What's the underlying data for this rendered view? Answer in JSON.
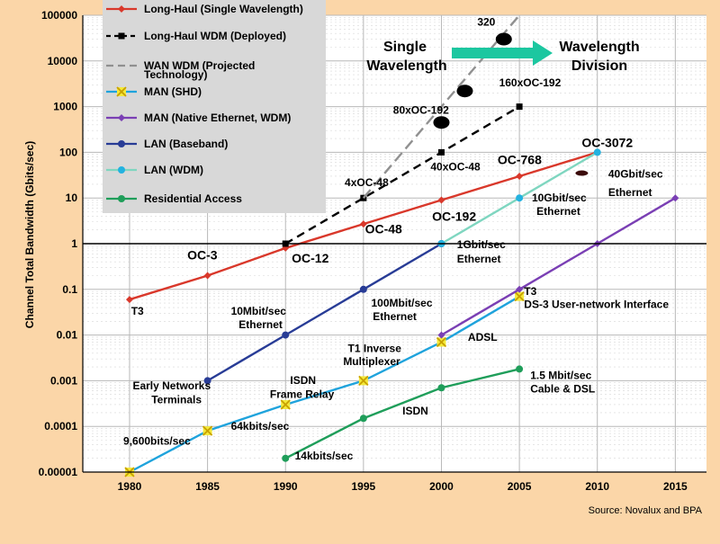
{
  "chart_data": {
    "type": "line",
    "y_scale": "log",
    "ylim": [
      1e-05,
      100000
    ],
    "xlim": [
      1977,
      2017
    ],
    "grid": true,
    "ylabel": "Channel Total Bandwidth (Gbits/sec)",
    "x_ticks": [
      1980,
      1985,
      1990,
      1995,
      2000,
      2005,
      2010,
      2015
    ],
    "y_ticks": [
      {
        "value": 1e-05,
        "label": "0.00001"
      },
      {
        "value": 0.0001,
        "label": "0.0001"
      },
      {
        "value": 0.001,
        "label": "0.001"
      },
      {
        "value": 0.01,
        "label": "0.01"
      },
      {
        "value": 0.1,
        "label": "0.1"
      },
      {
        "value": 1,
        "label": "1"
      },
      {
        "value": 10,
        "label": "10"
      },
      {
        "value": 100,
        "label": "100"
      },
      {
        "value": 1000,
        "label": "1000"
      },
      {
        "value": 10000,
        "label": "10000"
      },
      {
        "value": 100000,
        "label": "100000"
      }
    ],
    "series": [
      {
        "name": "Long-Haul (Single Wavelength)",
        "color": "#d9382b",
        "dash": "",
        "marker": "diamond",
        "points": [
          [
            1980,
            0.06
          ],
          [
            1985,
            0.2
          ],
          [
            1990,
            0.8
          ],
          [
            1995,
            2.7
          ],
          [
            2000,
            9
          ],
          [
            2005,
            30
          ],
          [
            2010,
            100
          ]
        ]
      },
      {
        "name": "Long-Haul WDM (Deployed)",
        "color": "#000000",
        "dash": "9,6",
        "marker": "square",
        "points": [
          [
            1990,
            1
          ],
          [
            1995,
            10
          ],
          [
            2000,
            100
          ],
          [
            2005,
            1000
          ]
        ]
      },
      {
        "name": "WAN WDM (Projected Technology)",
        "color": "#909090",
        "dash": "12,6",
        "marker": "none",
        "points": [
          [
            1995,
            10
          ],
          [
            1997.5,
            100
          ],
          [
            2000,
            1000
          ],
          [
            2002.5,
            10000
          ],
          [
            2005,
            100000
          ]
        ]
      },
      {
        "name": "MAN (SHD)",
        "color": "#1fa3dc",
        "dash": "",
        "marker": "xbox",
        "points": [
          [
            1980,
            1e-05
          ],
          [
            1985,
            8e-05
          ],
          [
            1990,
            0.0003
          ],
          [
            1995,
            0.001
          ],
          [
            2000,
            0.007
          ],
          [
            2005,
            0.07
          ]
        ]
      },
      {
        "name": "MAN (Native Ethernet, WDM)",
        "color": "#7a3fb4",
        "dash": "",
        "marker": "diamond",
        "points": [
          [
            2000,
            0.01
          ],
          [
            2005,
            0.1
          ],
          [
            2010,
            1
          ],
          [
            2015,
            10
          ]
        ]
      },
      {
        "name": "LAN (Baseband)",
        "color": "#283c96",
        "dash": "",
        "marker": "circle",
        "points": [
          [
            1985,
            0.001
          ],
          [
            1990,
            0.01
          ],
          [
            1995,
            0.1
          ],
          [
            2000,
            1
          ]
        ]
      },
      {
        "name": "LAN (WDM)",
        "color": "#7fd6c0",
        "dash": "",
        "marker": "circle-light",
        "points": [
          [
            2000,
            1
          ],
          [
            2005,
            10
          ],
          [
            2010,
            100
          ]
        ]
      },
      {
        "name": "Residential Access",
        "color": "#1f9e5a",
        "dash": "",
        "marker": "circle",
        "points": [
          [
            1990,
            2e-05
          ],
          [
            1995,
            0.00015
          ],
          [
            2000,
            0.0007
          ],
          [
            2005,
            0.0018
          ]
        ]
      }
    ],
    "ellipses": [
      {
        "x": 2000.0,
        "y": 450
      },
      {
        "x": 2001.5,
        "y": 2200
      },
      {
        "x": 2004.0,
        "y": 30000
      },
      {
        "x": 2009.0,
        "y": 35
      }
    ],
    "annotations": [
      {
        "text": "320",
        "x": 2002.3,
        "y": 60000
      },
      {
        "text": "160xOC-192",
        "x": 2003.7,
        "y": 2800
      },
      {
        "text": "80xOC-192",
        "x": 1996.9,
        "y": 700
      },
      {
        "text": "OC-3072",
        "x": 2009.0,
        "y": 130
      },
      {
        "text": "OC-768",
        "x": 2003.6,
        "y": 55
      },
      {
        "text": "40xOC-48",
        "x": 1999.3,
        "y": 40
      },
      {
        "text": "4xOC-48",
        "x": 1993.8,
        "y": 18
      },
      {
        "text": "40Gbit/sec",
        "x": 2010.7,
        "y": 28
      },
      {
        "text": "Ethernet",
        "x": 2010.7,
        "y": 11
      },
      {
        "text": "OC-192",
        "x": 1999.4,
        "y": 3.2
      },
      {
        "text": "10Gbit/sec",
        "x": 2005.8,
        "y": 8.5
      },
      {
        "text": "Ethernet",
        "x": 2006.1,
        "y": 4.3
      },
      {
        "text": "OC-48",
        "x": 1995.1,
        "y": 1.7
      },
      {
        "text": "1Gbit/sec",
        "x": 2001.0,
        "y": 0.8
      },
      {
        "text": "Ethernet",
        "x": 2001.0,
        "y": 0.39
      },
      {
        "text": "OC-3",
        "x": 1983.7,
        "y": 0.45
      },
      {
        "text": "OC-12",
        "x": 1990.4,
        "y": 0.39
      },
      {
        "text": "T3",
        "x": 1980.1,
        "y": 0.028
      },
      {
        "text": "10Mbit/sec",
        "x": 1986.5,
        "y": 0.028
      },
      {
        "text": "Ethernet",
        "x": 1987.0,
        "y": 0.014
      },
      {
        "text": "100Mbit/sec",
        "x": 1995.5,
        "y": 0.042
      },
      {
        "text": "Ethernet",
        "x": 1995.6,
        "y": 0.021
      },
      {
        "text": "T3",
        "x": 2005.3,
        "y": 0.075
      },
      {
        "text": "DS-3 User-network Interface",
        "x": 2005.3,
        "y": 0.039
      },
      {
        "text": "ADSL",
        "x": 2001.7,
        "y": 0.0075
      },
      {
        "text": "T1 Inverse",
        "x": 1994.0,
        "y": 0.0042
      },
      {
        "text": "Multiplexer",
        "x": 1993.7,
        "y": 0.0022
      },
      {
        "text": "1.5 Mbit/sec",
        "x": 2005.7,
        "y": 0.0011
      },
      {
        "text": "Cable & DSL",
        "x": 2005.7,
        "y": 0.00055
      },
      {
        "text": "Early Networks",
        "x": 1980.2,
        "y": 0.00065
      },
      {
        "text": "Terminals",
        "x": 1981.4,
        "y": 0.00032
      },
      {
        "text": "ISDN",
        "x": 1990.3,
        "y": 0.00085
      },
      {
        "text": "Frame Relay",
        "x": 1989.0,
        "y": 0.00042
      },
      {
        "text": "ISDN",
        "x": 1997.5,
        "y": 0.00018
      },
      {
        "text": "64kbits/sec",
        "x": 1986.5,
        "y": 8.5e-05
      },
      {
        "text": "9,600bits/sec",
        "x": 1979.6,
        "y": 4e-05
      },
      {
        "text": "14kbits/sec",
        "x": 1990.6,
        "y": 1.9e-05
      }
    ],
    "headers": {
      "single_line1": "Single",
      "single_line2": "Wavelength",
      "wdm_line1": "Wavelength",
      "wdm_line2": "Division"
    }
  },
  "legend": {
    "items": [
      {
        "label": "Long-Haul (Single Wavelength)",
        "color": "#d9382b",
        "dash": "",
        "marker": "diamond"
      },
      {
        "label": "Long-Haul WDM (Deployed)",
        "color": "#000000",
        "dash": "5,4",
        "marker": "square"
      },
      {
        "label": "WAN WDM (Projected",
        "label2": "Technology)",
        "color": "#909090",
        "dash": "8,5",
        "marker": "none"
      },
      {
        "label": "MAN (SHD)",
        "color": "#1fa3dc",
        "dash": "",
        "marker": "xbox"
      },
      {
        "label": "MAN (Native Ethernet, WDM)",
        "color": "#7a3fb4",
        "dash": "",
        "marker": "diamond"
      },
      {
        "label": "LAN (Baseband)",
        "color": "#283c96",
        "dash": "",
        "marker": "circle"
      },
      {
        "label": "LAN (WDM)",
        "color": "#7fd6c0",
        "dash": "",
        "marker": "circle-light"
      },
      {
        "label": "Residential Access",
        "color": "#1f9e5a",
        "dash": "",
        "marker": "circle"
      }
    ]
  },
  "arrow_color": "#1cc7a0",
  "source_text": "Source: Novalux  and BPA"
}
